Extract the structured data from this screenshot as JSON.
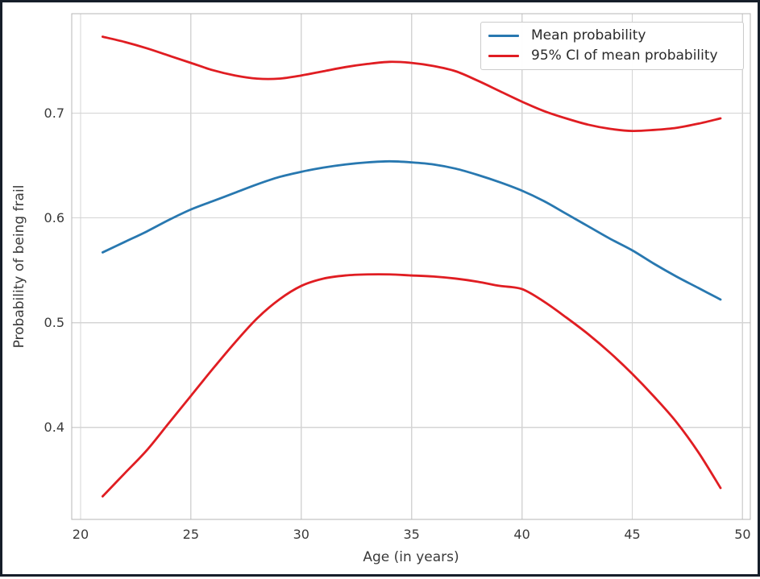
{
  "chart_data": {
    "type": "line",
    "title": "",
    "xlabel": "Age (in years)",
    "ylabel": "Probability of being frail",
    "xlim": [
      19.6,
      50.35
    ],
    "ylim": [
      0.312,
      0.795
    ],
    "grid": true,
    "xticks": {
      "values": [
        20,
        25,
        30,
        35,
        40,
        45,
        50
      ],
      "labels": [
        "20",
        "25",
        "30",
        "35",
        "40",
        "45",
        "50"
      ]
    },
    "yticks": {
      "values": [
        0.4,
        0.5,
        0.6,
        0.7
      ],
      "labels": [
        "0.4",
        "0.5",
        "0.6",
        "0.7"
      ]
    },
    "legend": {
      "position": "upper-right",
      "entries": [
        {
          "label": "Mean probability",
          "color": "#2878b0"
        },
        {
          "label": "95% CI of mean probability",
          "color": "#e01d22"
        }
      ]
    },
    "x": [
      21,
      22,
      23,
      24,
      25,
      26,
      27,
      28,
      29,
      30,
      31,
      32,
      33,
      34,
      35,
      36,
      37,
      38,
      39,
      40,
      41,
      42,
      43,
      44,
      45,
      46,
      47,
      48,
      49
    ],
    "series": [
      {
        "name": "Mean probability",
        "color": "#2878b0",
        "values": [
          0.567,
          0.577,
          0.587,
          0.598,
          0.608,
          0.616,
          0.624,
          0.632,
          0.639,
          0.644,
          0.648,
          0.651,
          0.653,
          0.654,
          0.653,
          0.651,
          0.647,
          0.641,
          0.634,
          0.626,
          0.616,
          0.604,
          0.592,
          0.58,
          0.569,
          0.556,
          0.544,
          0.533,
          0.522
        ]
      },
      {
        "name": "95% CI upper bound",
        "color": "#e01d22",
        "values": [
          0.773,
          0.768,
          0.762,
          0.755,
          0.748,
          0.741,
          0.736,
          0.733,
          0.733,
          0.736,
          0.74,
          0.744,
          0.747,
          0.749,
          0.748,
          0.745,
          0.74,
          0.731,
          0.721,
          0.711,
          0.702,
          0.695,
          0.689,
          0.685,
          0.683,
          0.684,
          0.686,
          0.69,
          0.695
        ]
      },
      {
        "name": "95% CI lower bound",
        "color": "#e01d22",
        "values": [
          0.334,
          0.356,
          0.378,
          0.404,
          0.43,
          0.456,
          0.481,
          0.504,
          0.522,
          0.535,
          0.542,
          0.545,
          0.546,
          0.546,
          0.545,
          0.544,
          0.542,
          0.539,
          0.535,
          0.532,
          0.52,
          0.505,
          0.489,
          0.471,
          0.451,
          0.429,
          0.405,
          0.376,
          0.342
        ]
      }
    ]
  },
  "colors": {
    "background": "#ffffff",
    "outer_border": "#161e2a",
    "grid": "#d4d4d4",
    "spine": "#b7b7b7",
    "text": "#3a3a3a",
    "mean_line": "#2878b0",
    "ci_line": "#e01d22"
  }
}
